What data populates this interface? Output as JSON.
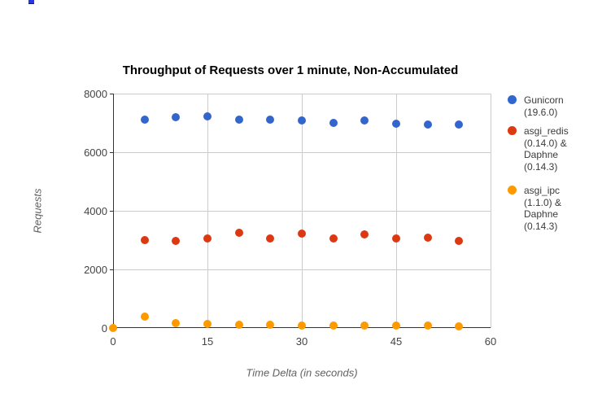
{
  "chart": {
    "title": "Throughput of Requests over 1 minute, Non-Accumulated",
    "x_axis": {
      "label": "Time Delta (in seconds)",
      "ticks": [
        0,
        15,
        30,
        45,
        60
      ],
      "min": 0,
      "max": 60
    },
    "y_axis": {
      "label": "Requests",
      "ticks": [
        0,
        2000,
        4000,
        6000,
        8000
      ],
      "min": 0,
      "max": 8000
    },
    "legend": [
      {
        "label": "Gunicorn (19.6.0)",
        "color": "#3366cc"
      },
      {
        "label": "asgi_redis (0.14.0) & Daphne (0.14.3)",
        "color": "#dc3912"
      },
      {
        "label": "asgi_ipc (1.1.0) & Daphne (0.14.3)",
        "color": "#ff9900"
      }
    ]
  },
  "chart_data": {
    "type": "scatter",
    "title": "Throughput of Requests over 1 minute, Non-Accumulated",
    "xlabel": "Time Delta (in seconds)",
    "ylabel": "Requests",
    "xlim": [
      0,
      60
    ],
    "ylim": [
      0,
      8000
    ],
    "x_ticks": [
      0,
      15,
      30,
      45,
      60
    ],
    "y_ticks": [
      0,
      2000,
      4000,
      6000,
      8000
    ],
    "grid": true,
    "legend_position": "right",
    "series": [
      {
        "name": "Gunicorn (19.6.0)",
        "color": "#3366cc",
        "x": [
          5,
          10,
          15,
          20,
          25,
          30,
          35,
          40,
          45,
          50,
          55
        ],
        "y": [
          7110,
          7190,
          7220,
          7110,
          7110,
          7080,
          7000,
          7080,
          6970,
          6950,
          6940
        ]
      },
      {
        "name": "asgi_redis (0.14.0) & Daphne (0.14.3)",
        "color": "#dc3912",
        "x": [
          5,
          10,
          15,
          20,
          25,
          30,
          35,
          40,
          45,
          50,
          55
        ],
        "y": [
          3000,
          2970,
          3060,
          3250,
          3060,
          3210,
          3060,
          3190,
          3060,
          3080,
          2970
        ]
      },
      {
        "name": "asgi_ipc (1.1.0) & Daphne (0.14.3)",
        "color": "#ff9900",
        "x": [
          0,
          5,
          10,
          15,
          20,
          25,
          30,
          35,
          40,
          45,
          50,
          55
        ],
        "y": [
          0,
          380,
          180,
          130,
          110,
          105,
          95,
          85,
          90,
          90,
          75,
          60
        ]
      }
    ]
  }
}
